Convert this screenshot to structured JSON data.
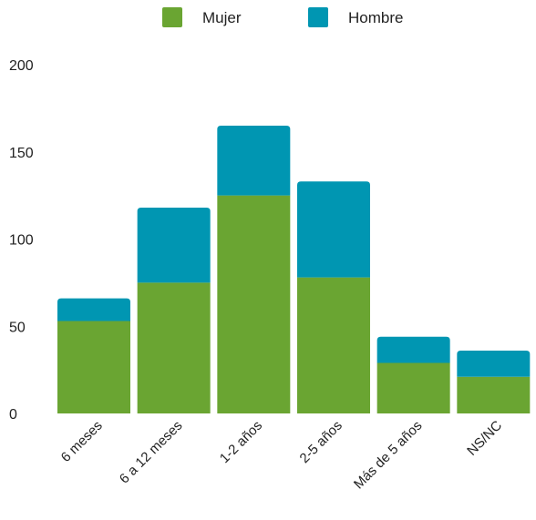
{
  "chart_data": {
    "type": "bar",
    "stacked": true,
    "categories": [
      "6 meses",
      "6 a 12 meses",
      "1-2 años",
      "2-5 años",
      "Más de 5 años",
      "NS/NC"
    ],
    "series": [
      {
        "name": "Mujer",
        "color": "#6aa532",
        "values": [
          53,
          75,
          125,
          78,
          29,
          21
        ]
      },
      {
        "name": "Hombre",
        "color": "#0096b2",
        "values": [
          13,
          43,
          40,
          55,
          15,
          15
        ]
      }
    ],
    "ylim": [
      0,
      200
    ],
    "yticks": [
      0,
      50,
      100,
      150,
      200
    ],
    "legend_position": "top",
    "grid": false,
    "title": "",
    "xlabel": "",
    "ylabel": ""
  }
}
